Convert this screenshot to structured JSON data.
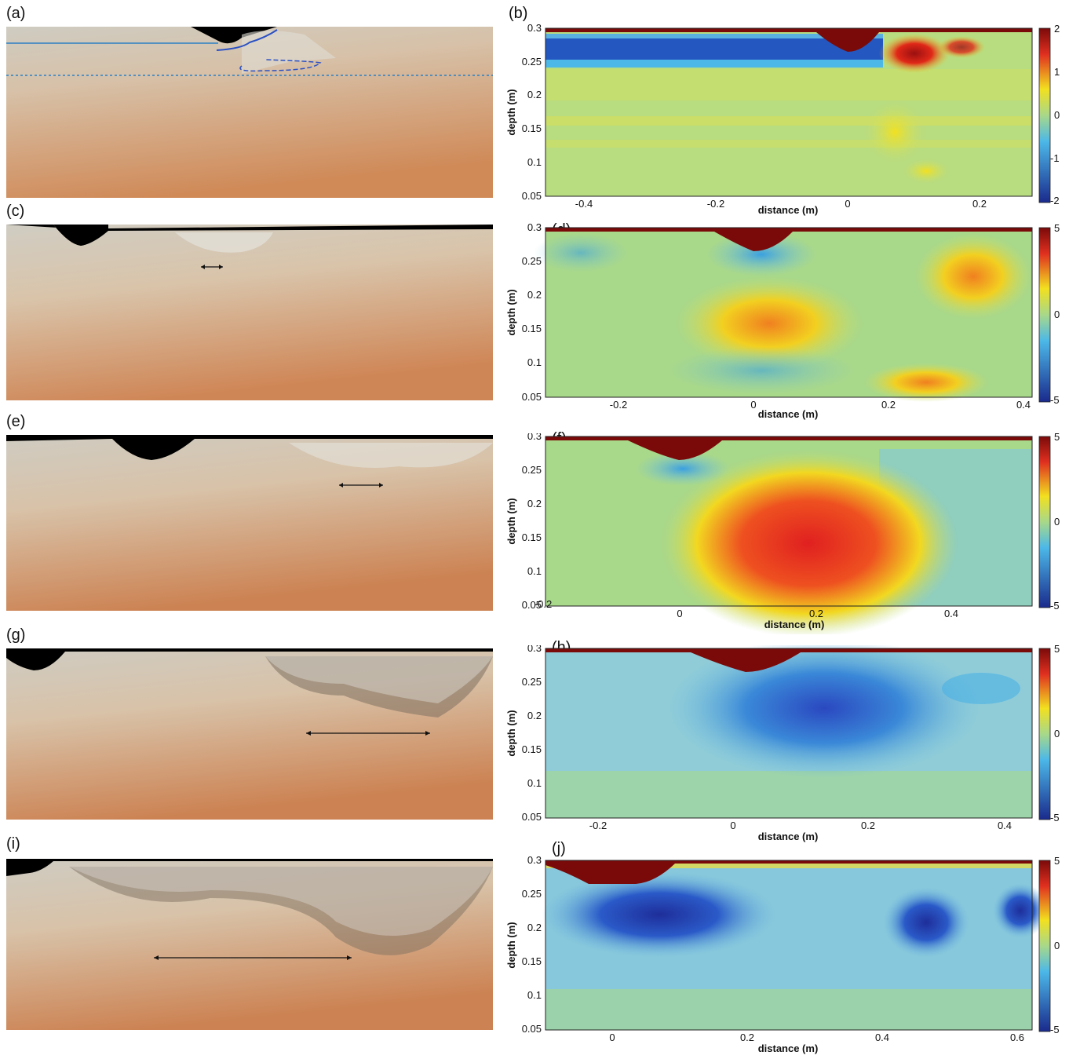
{
  "figure": {
    "rows": [
      {
        "photo_label": "(a)",
        "plot_label": "(b)",
        "plot": {
          "xlabel": "distance (m)",
          "ylabel": "depth (m)",
          "xlim": [
            -0.47,
            0.27
          ],
          "ylim": [
            0.05,
            0.3
          ],
          "xticks": [
            -0.4,
            -0.2,
            0,
            0.2
          ],
          "xtick_labels": [
            "-0.4",
            "-0.2",
            "0",
            "0.2"
          ],
          "yticks": [
            0.05,
            0.1,
            0.15,
            0.2,
            0.25,
            0.3
          ],
          "ytick_labels": [
            "0.05",
            "0.1",
            "0.15",
            "0.2",
            "0.25",
            "0.3"
          ],
          "colorbar_ticks": [
            2,
            1,
            0,
            -1,
            -2
          ],
          "colorbar_labels": [
            "2",
            "1",
            "0",
            "-1",
            "-2"
          ]
        }
      },
      {
        "photo_label": "(c)",
        "plot_label": "(d)",
        "plot": {
          "xlabel": "distance (m)",
          "ylabel": "depth (m)",
          "xlim": [
            -0.31,
            0.41
          ],
          "ylim": [
            0.05,
            0.3
          ],
          "xticks": [
            -0.2,
            0,
            0.2,
            0.4
          ],
          "xtick_labels": [
            "-0.2",
            "0",
            "0.2",
            "0.4"
          ],
          "yticks": [
            0.05,
            0.1,
            0.15,
            0.2,
            0.25,
            0.3
          ],
          "ytick_labels": [
            "0.05",
            "0.1",
            "0.15",
            "0.2",
            "0.25",
            "0.3"
          ],
          "colorbar_ticks": [
            5,
            0,
            -5
          ],
          "colorbar_labels": [
            "5",
            "0",
            "-5"
          ]
        }
      },
      {
        "photo_label": "(e)",
        "plot_label": "(f)",
        "plot": {
          "xlabel": "distance (m)",
          "ylabel": "depth (m)",
          "xlim": [
            -0.2,
            0.52
          ],
          "ylim": [
            0.05,
            0.3
          ],
          "xticks": [
            -0.2,
            0,
            0.2,
            0.4
          ],
          "xtick_labels": [
            "-0.2",
            "0",
            "0.2",
            "0.4"
          ],
          "yticks": [
            0.05,
            0.1,
            0.15,
            0.2,
            0.25,
            0.3
          ],
          "ytick_labels": [
            "0.05",
            "0.1",
            "0.15",
            "0.2",
            "0.25",
            "0.3"
          ],
          "colorbar_ticks": [
            5,
            0,
            -5
          ],
          "colorbar_labels": [
            "5",
            "0",
            "-5"
          ]
        }
      },
      {
        "photo_label": "(g)",
        "plot_label": "(h)",
        "plot": {
          "xlabel": "distance (m)",
          "ylabel": "depth (m)",
          "xlim": [
            -0.28,
            0.44
          ],
          "ylim": [
            0.05,
            0.3
          ],
          "xticks": [
            -0.2,
            0,
            0.2,
            0.4
          ],
          "xtick_labels": [
            "-0.2",
            "0",
            "0.2",
            "0.4"
          ],
          "yticks": [
            0.05,
            0.1,
            0.15,
            0.2,
            0.25,
            0.3
          ],
          "ytick_labels": [
            "0.05",
            "0.1",
            "0.15",
            "0.2",
            "0.25",
            "0.3"
          ],
          "colorbar_ticks": [
            5,
            0,
            -5
          ],
          "colorbar_labels": [
            "5",
            "0",
            "-5"
          ]
        }
      },
      {
        "photo_label": "(i)",
        "plot_label": "(j)",
        "plot": {
          "xlabel": "distance (m)",
          "ylabel": "depth (m)",
          "xlim": [
            -0.1,
            0.62
          ],
          "ylim": [
            0.05,
            0.3
          ],
          "xticks": [
            0,
            0.2,
            0.4,
            0.6
          ],
          "xtick_labels": [
            "0",
            "0.2",
            "0.4",
            "0.6"
          ],
          "yticks": [
            0.05,
            0.1,
            0.15,
            0.2,
            0.25,
            0.3
          ],
          "ytick_labels": [
            "0.05",
            "0.1",
            "0.15",
            "0.2",
            "0.25",
            "0.3"
          ],
          "colorbar_ticks": [
            5,
            0,
            -5
          ],
          "colorbar_labels": [
            "5",
            "0",
            "-5"
          ]
        }
      }
    ],
    "colors": {
      "photo_top": "#c9c6bb",
      "photo_bottom": "#d98e58",
      "air": "#000000",
      "cmap_max": "#7a0a0a",
      "cmap_high": "#e03020",
      "cmap_mid_high": "#f2e020",
      "cmap_zero": "#a8d88a",
      "cmap_mid_low": "#4cb8e8",
      "cmap_low": "#1a2a8c"
    }
  }
}
